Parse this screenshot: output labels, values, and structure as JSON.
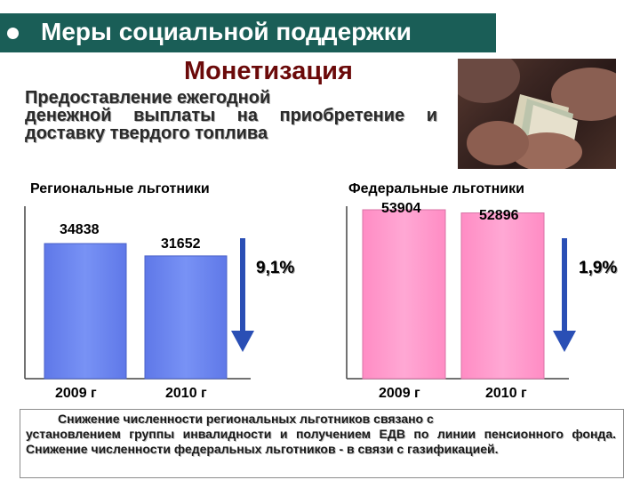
{
  "header": {
    "title": "Меры социальной поддержки"
  },
  "subtitle": "Монетизация",
  "description": {
    "line1": "Предоставление ежегодной",
    "rest": "денежной выплаты на приобретение и доставку твердого топлива"
  },
  "photo": {
    "icon": "money-in-hands-photo"
  },
  "regional": {
    "title": "Региональные льготники",
    "change": "9,1%",
    "color": "#6b86f0"
  },
  "federal": {
    "title": "Федеральные льготники",
    "change": "1,9%",
    "color": "#ff99cc"
  },
  "chart_data": [
    {
      "type": "bar",
      "title": "Региональные льготники",
      "categories": [
        "2009 г",
        "2010 г"
      ],
      "values": [
        34838,
        31652
      ],
      "value_labels": [
        "34838",
        "31652"
      ],
      "change_label": "9,1%",
      "trend": "down"
    },
    {
      "type": "bar",
      "title": "Федеральные льготники",
      "categories": [
        "2009 г",
        "2010 г"
      ],
      "values": [
        53904,
        52896
      ],
      "value_labels": [
        "53904",
        "52896"
      ],
      "change_label": "1,9%",
      "trend": "down"
    }
  ],
  "note": {
    "text_line1": "Снижение численности региональных льготников связано с",
    "text_rest": "установлением группы инвалидности и получением ЕДВ по линии пенсионного фонда. Снижение численности федеральных льготников - в связи с газификацией."
  },
  "colors": {
    "header_bg": "#1a5e57",
    "subtitle": "#6b0a0a",
    "arrow": "#2a4fb5"
  }
}
